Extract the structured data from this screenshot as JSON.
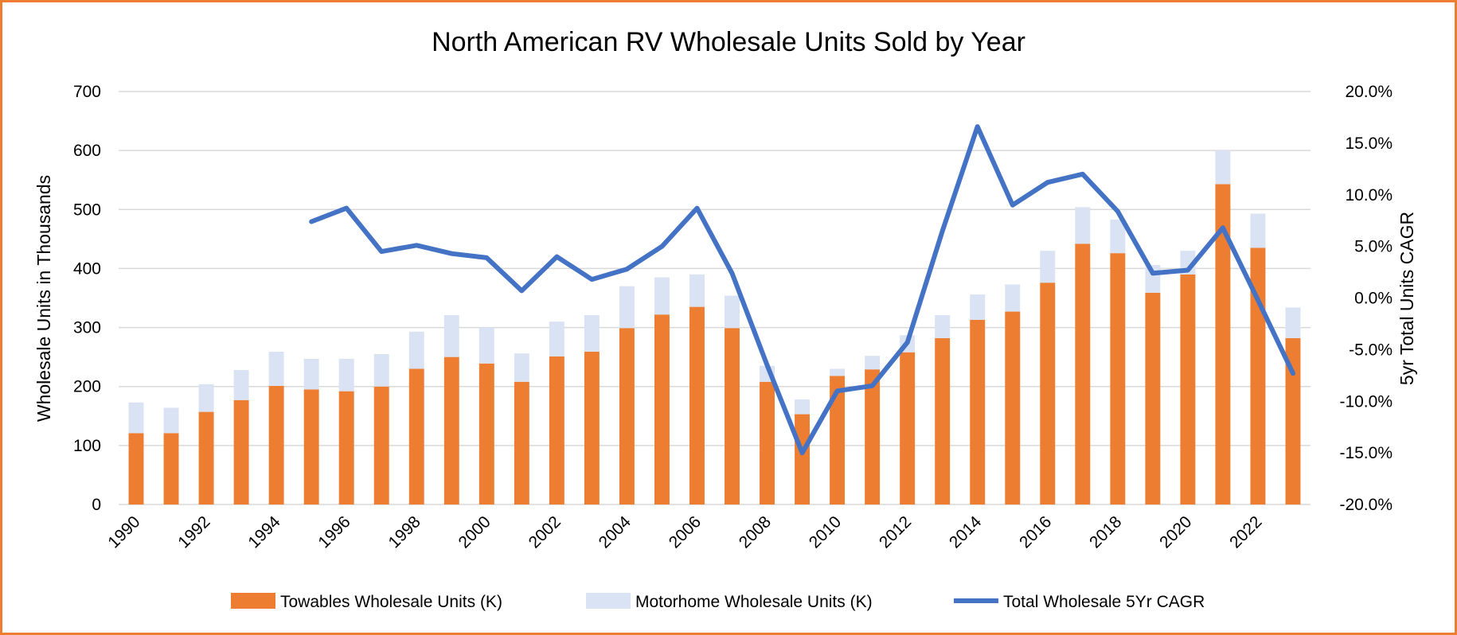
{
  "chart_data": {
    "type": "bar",
    "stacked": true,
    "title": "North American RV Wholesale Units Sold by Year",
    "ylabel": "Wholesale Units in Thousands",
    "y2label": "5yr Total Units CAGR",
    "ylim": [
      0,
      700
    ],
    "y2lim": [
      -20,
      20
    ],
    "yticks": [
      "0",
      "100",
      "200",
      "300",
      "400",
      "500",
      "600",
      "700"
    ],
    "y2ticks": [
      "-20.0%",
      "-15.0%",
      "-10.0%",
      "-5.0%",
      "0.0%",
      "5.0%",
      "10.0%",
      "15.0%",
      "20.0%"
    ],
    "grid": true,
    "legend_position": "bottom",
    "categories": [
      1990,
      1991,
      1992,
      1993,
      1994,
      1995,
      1996,
      1997,
      1998,
      1999,
      2000,
      2001,
      2002,
      2003,
      2004,
      2005,
      2006,
      2007,
      2008,
      2009,
      2010,
      2011,
      2012,
      2013,
      2014,
      2015,
      2016,
      2017,
      2018,
      2019,
      2020,
      2021,
      2022,
      2023
    ],
    "x_tick_labels": [
      "1990",
      "1992",
      "1994",
      "1996",
      "1998",
      "2000",
      "2002",
      "2004",
      "2006",
      "2008",
      "2010",
      "2012",
      "2014",
      "2016",
      "2018",
      "2020",
      "2022"
    ],
    "series": [
      {
        "name": "Towables Wholesale Units (K)",
        "kind": "bar",
        "color": "#ED7D31",
        "values": [
          121,
          121,
          157,
          177,
          201,
          195,
          192,
          200,
          230,
          250,
          239,
          208,
          251,
          259,
          299,
          322,
          335,
          299,
          208,
          153,
          218,
          229,
          258,
          282,
          313,
          327,
          376,
          442,
          426,
          359,
          390,
          543,
          435,
          282
        ]
      },
      {
        "name": "Motorhome Wholesale Units (K)",
        "kind": "bar",
        "color": "#DAE3F3",
        "values": [
          52,
          43,
          47,
          51,
          58,
          52,
          55,
          55,
          63,
          71,
          61,
          48,
          59,
          62,
          71,
          63,
          55,
          55,
          27,
          25,
          12,
          23,
          29,
          39,
          43,
          46,
          54,
          62,
          57,
          47,
          40,
          57,
          58,
          52
        ]
      },
      {
        "name": "Total Wholesale 5Yr CAGR",
        "kind": "line",
        "axis": "right",
        "color": "#4472C4",
        "values": [
          null,
          null,
          null,
          null,
          null,
          7.4,
          8.7,
          4.5,
          5.1,
          4.3,
          3.9,
          0.7,
          4.0,
          1.8,
          2.8,
          5.0,
          8.7,
          2.4,
          -6.5,
          -15.0,
          -9.0,
          -8.5,
          -4.3,
          6.5,
          16.6,
          9.0,
          11.2,
          12.0,
          8.4,
          2.4,
          2.7,
          6.8,
          -0.2,
          -7.3
        ]
      }
    ]
  }
}
